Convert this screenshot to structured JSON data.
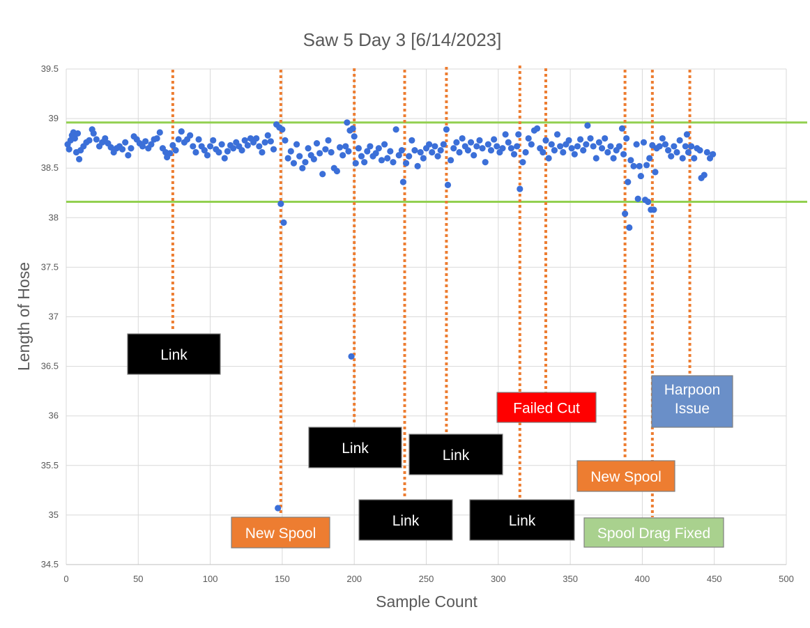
{
  "chart_data": {
    "type": "scatter",
    "title": "Saw 5 Day 3 [6/14/2023]",
    "xlabel": "Sample Count",
    "ylabel": "Length of Hose",
    "xlim": [
      0,
      500
    ],
    "ylim": [
      34.5,
      39.5
    ],
    "x_ticks": [
      "0",
      "50",
      "100",
      "150",
      "200",
      "250",
      "300",
      "350",
      "400",
      "450",
      "500"
    ],
    "y_ticks": [
      "34.5",
      "35",
      "35.5",
      "36",
      "36.5",
      "37",
      "37.5",
      "38",
      "38.5",
      "39",
      "39.5"
    ],
    "grid": true,
    "legend": "none",
    "colors": {
      "point": "#3B6FD8",
      "limit_line": "#92D050",
      "event_line": "#ED7D31",
      "grid": "#D9D9D9"
    },
    "limit_lines": [
      38.96,
      38.16
    ],
    "event_lines": [
      74,
      149,
      200,
      235,
      264,
      315,
      333,
      388,
      407,
      433
    ],
    "annotations": [
      {
        "text": "Link",
        "color": "#000000",
        "text_color": "#FFFFFF"
      },
      {
        "text": "New Spool",
        "color": "#ED7D31",
        "text_color": "#FFFFFF"
      },
      {
        "text": "Link",
        "color": "#000000",
        "text_color": "#FFFFFF"
      },
      {
        "text": "Link",
        "color": "#000000",
        "text_color": "#FFFFFF"
      },
      {
        "text": "Link",
        "color": "#000000",
        "text_color": "#FFFFFF"
      },
      {
        "text": "Link",
        "color": "#000000",
        "text_color": "#FFFFFF"
      },
      {
        "text": "Failed Cut",
        "color": "#FF0000",
        "text_color": "#FFFFFF"
      },
      {
        "text": "New Spool",
        "color": "#ED7D31",
        "text_color": "#FFFFFF"
      },
      {
        "text": "Spool Drag Fixed",
        "color": "#A9D18E",
        "text_color": "#FFFFFF"
      },
      {
        "text": "Harpoon Issue",
        "color": "#6A8FC8",
        "text_color": "#FFFFFF"
      }
    ],
    "series": [
      {
        "points": [
          [
            1,
            38.74
          ],
          [
            2,
            38.69
          ],
          [
            3,
            38.78
          ],
          [
            4,
            38.83
          ],
          [
            5,
            38.86
          ],
          [
            6,
            38.8
          ],
          [
            7,
            38.66
          ],
          [
            8,
            38.85
          ],
          [
            9,
            38.59
          ],
          [
            10,
            38.68
          ],
          [
            12,
            38.72
          ],
          [
            14,
            38.76
          ],
          [
            16,
            38.78
          ],
          [
            18,
            38.89
          ],
          [
            19,
            38.85
          ],
          [
            21,
            38.79
          ],
          [
            23,
            38.72
          ],
          [
            25,
            38.76
          ],
          [
            27,
            38.8
          ],
          [
            29,
            38.75
          ],
          [
            31,
            38.71
          ],
          [
            33,
            38.66
          ],
          [
            35,
            38.7
          ],
          [
            37,
            38.72
          ],
          [
            39,
            38.69
          ],
          [
            41,
            38.76
          ],
          [
            43,
            38.63
          ],
          [
            45,
            38.7
          ],
          [
            47,
            38.82
          ],
          [
            49,
            38.79
          ],
          [
            51,
            38.75
          ],
          [
            53,
            38.72
          ],
          [
            55,
            38.77
          ],
          [
            57,
            38.7
          ],
          [
            59,
            38.74
          ],
          [
            61,
            38.79
          ],
          [
            63,
            38.8
          ],
          [
            65,
            38.86
          ],
          [
            67,
            38.7
          ],
          [
            69,
            38.66
          ],
          [
            70,
            38.61
          ],
          [
            72,
            38.65
          ],
          [
            74,
            38.73
          ],
          [
            76,
            38.68
          ],
          [
            78,
            38.79
          ],
          [
            80,
            38.87
          ],
          [
            82,
            38.76
          ],
          [
            84,
            38.79
          ],
          [
            86,
            38.83
          ],
          [
            88,
            38.72
          ],
          [
            90,
            38.66
          ],
          [
            92,
            38.79
          ],
          [
            94,
            38.72
          ],
          [
            96,
            38.68
          ],
          [
            98,
            38.63
          ],
          [
            100,
            38.72
          ],
          [
            102,
            38.78
          ],
          [
            104,
            38.69
          ],
          [
            106,
            38.66
          ],
          [
            108,
            38.74
          ],
          [
            110,
            38.6
          ],
          [
            112,
            38.67
          ],
          [
            114,
            38.73
          ],
          [
            116,
            38.7
          ],
          [
            118,
            38.76
          ],
          [
            120,
            38.72
          ],
          [
            122,
            38.68
          ],
          [
            124,
            38.78
          ],
          [
            126,
            38.73
          ],
          [
            128,
            38.8
          ],
          [
            130,
            38.76
          ],
          [
            132,
            38.8
          ],
          [
            134,
            38.72
          ],
          [
            136,
            38.66
          ],
          [
            138,
            38.76
          ],
          [
            140,
            38.83
          ],
          [
            142,
            38.77
          ],
          [
            144,
            38.69
          ],
          [
            146,
            38.94
          ],
          [
            147,
            35.07
          ],
          [
            148,
            38.91
          ],
          [
            149,
            38.14
          ],
          [
            150,
            38.89
          ],
          [
            151,
            37.95
          ],
          [
            152,
            38.78
          ],
          [
            154,
            38.6
          ],
          [
            156,
            38.67
          ],
          [
            158,
            38.55
          ],
          [
            160,
            38.74
          ],
          [
            162,
            38.62
          ],
          [
            164,
            38.5
          ],
          [
            166,
            38.56
          ],
          [
            168,
            38.7
          ],
          [
            170,
            38.63
          ],
          [
            172,
            38.59
          ],
          [
            174,
            38.75
          ],
          [
            176,
            38.65
          ],
          [
            178,
            38.44
          ],
          [
            180,
            38.69
          ],
          [
            182,
            38.78
          ],
          [
            184,
            38.66
          ],
          [
            186,
            38.5
          ],
          [
            188,
            38.47
          ],
          [
            190,
            38.71
          ],
          [
            192,
            38.63
          ],
          [
            194,
            38.72
          ],
          [
            195,
            38.96
          ],
          [
            196,
            38.67
          ],
          [
            197,
            38.88
          ],
          [
            198,
            36.6
          ],
          [
            199,
            38.9
          ],
          [
            200,
            38.82
          ],
          [
            201,
            38.55
          ],
          [
            203,
            38.7
          ],
          [
            205,
            38.62
          ],
          [
            207,
            38.56
          ],
          [
            209,
            38.67
          ],
          [
            211,
            38.72
          ],
          [
            213,
            38.62
          ],
          [
            215,
            38.65
          ],
          [
            217,
            38.7
          ],
          [
            219,
            38.58
          ],
          [
            221,
            38.74
          ],
          [
            223,
            38.6
          ],
          [
            225,
            38.67
          ],
          [
            227,
            38.56
          ],
          [
            229,
            38.89
          ],
          [
            231,
            38.63
          ],
          [
            233,
            38.68
          ],
          [
            234,
            38.36
          ],
          [
            236,
            38.55
          ],
          [
            238,
            38.62
          ],
          [
            240,
            38.78
          ],
          [
            242,
            38.68
          ],
          [
            244,
            38.52
          ],
          [
            246,
            38.66
          ],
          [
            248,
            38.6
          ],
          [
            250,
            38.7
          ],
          [
            252,
            38.74
          ],
          [
            254,
            38.66
          ],
          [
            256,
            38.72
          ],
          [
            258,
            38.62
          ],
          [
            260,
            38.68
          ],
          [
            262,
            38.74
          ],
          [
            264,
            38.89
          ],
          [
            265,
            38.33
          ],
          [
            267,
            38.58
          ],
          [
            269,
            38.7
          ],
          [
            271,
            38.76
          ],
          [
            273,
            38.66
          ],
          [
            275,
            38.8
          ],
          [
            277,
            38.72
          ],
          [
            279,
            38.68
          ],
          [
            281,
            38.76
          ],
          [
            283,
            38.63
          ],
          [
            285,
            38.72
          ],
          [
            287,
            38.78
          ],
          [
            289,
            38.7
          ],
          [
            291,
            38.56
          ],
          [
            293,
            38.74
          ],
          [
            295,
            38.68
          ],
          [
            297,
            38.79
          ],
          [
            299,
            38.72
          ],
          [
            301,
            38.66
          ],
          [
            303,
            38.7
          ],
          [
            305,
            38.84
          ],
          [
            307,
            38.76
          ],
          [
            309,
            38.7
          ],
          [
            311,
            38.64
          ],
          [
            313,
            38.72
          ],
          [
            314,
            38.84
          ],
          [
            315,
            38.29
          ],
          [
            317,
            38.56
          ],
          [
            319,
            38.66
          ],
          [
            321,
            38.8
          ],
          [
            323,
            38.74
          ],
          [
            325,
            38.88
          ],
          [
            327,
            38.9
          ],
          [
            329,
            38.7
          ],
          [
            331,
            38.66
          ],
          [
            333,
            38.78
          ],
          [
            335,
            38.6
          ],
          [
            337,
            38.74
          ],
          [
            339,
            38.68
          ],
          [
            341,
            38.84
          ],
          [
            343,
            38.72
          ],
          [
            345,
            38.66
          ],
          [
            347,
            38.74
          ],
          [
            349,
            38.78
          ],
          [
            351,
            38.7
          ],
          [
            353,
            38.64
          ],
          [
            355,
            38.72
          ],
          [
            357,
            38.79
          ],
          [
            359,
            38.68
          ],
          [
            361,
            38.74
          ],
          [
            362,
            38.93
          ],
          [
            364,
            38.8
          ],
          [
            366,
            38.72
          ],
          [
            368,
            38.6
          ],
          [
            370,
            38.76
          ],
          [
            372,
            38.7
          ],
          [
            374,
            38.8
          ],
          [
            376,
            38.66
          ],
          [
            378,
            38.72
          ],
          [
            380,
            38.6
          ],
          [
            382,
            38.68
          ],
          [
            384,
            38.72
          ],
          [
            386,
            38.9
          ],
          [
            387,
            38.64
          ],
          [
            388,
            38.04
          ],
          [
            389,
            38.8
          ],
          [
            390,
            38.36
          ],
          [
            391,
            37.9
          ],
          [
            392,
            38.58
          ],
          [
            394,
            38.52
          ],
          [
            396,
            38.74
          ],
          [
            397,
            38.19
          ],
          [
            398,
            38.52
          ],
          [
            399,
            38.42
          ],
          [
            401,
            38.76
          ],
          [
            402,
            38.18
          ],
          [
            403,
            38.53
          ],
          [
            404,
            38.16
          ],
          [
            405,
            38.6
          ],
          [
            406,
            38.08
          ],
          [
            407,
            38.73
          ],
          [
            408,
            38.08
          ],
          [
            409,
            38.46
          ],
          [
            410,
            38.7
          ],
          [
            412,
            38.72
          ],
          [
            414,
            38.8
          ],
          [
            416,
            38.74
          ],
          [
            418,
            38.68
          ],
          [
            420,
            38.62
          ],
          [
            422,
            38.72
          ],
          [
            424,
            38.66
          ],
          [
            426,
            38.78
          ],
          [
            428,
            38.6
          ],
          [
            430,
            38.72
          ],
          [
            431,
            38.84
          ],
          [
            432,
            38.66
          ],
          [
            434,
            38.72
          ],
          [
            436,
            38.6
          ],
          [
            438,
            38.7
          ],
          [
            440,
            38.68
          ],
          [
            441,
            38.4
          ],
          [
            443,
            38.43
          ],
          [
            445,
            38.66
          ],
          [
            447,
            38.6
          ],
          [
            449,
            38.64
          ]
        ]
      }
    ]
  }
}
